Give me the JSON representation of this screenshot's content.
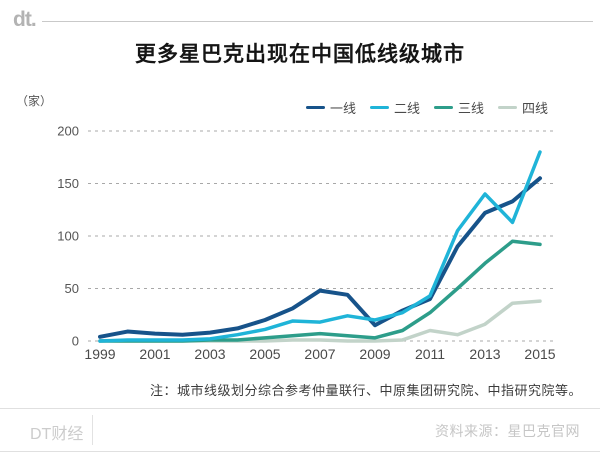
{
  "header": {
    "logo_text": "dt.",
    "title": "更多星巴克出现在中国低线级城市"
  },
  "y_axis_unit": "（家）",
  "chart_data": {
    "type": "line",
    "title": "更多星巴克出现在中国低线级城市",
    "ylabel": "（家）",
    "ylim": [
      0,
      200
    ],
    "y_ticks": [
      0,
      50,
      100,
      150,
      200
    ],
    "x_tick_labels": [
      "1999",
      "2001",
      "2003",
      "2005",
      "2007",
      "2009",
      "2011",
      "2013",
      "2015"
    ],
    "x": [
      1999,
      2000,
      2001,
      2002,
      2003,
      2004,
      2005,
      2006,
      2007,
      2008,
      2009,
      2010,
      2011,
      2012,
      2013,
      2014,
      2015
    ],
    "grid": "dashed-horizontal",
    "legend_position": "top-right",
    "draw_order": [
      3,
      2,
      0,
      1
    ],
    "series": [
      {
        "name": "一线",
        "color": "#17538a",
        "values": [
          4,
          9,
          7,
          6,
          8,
          12,
          20,
          31,
          48,
          44,
          15,
          29,
          40,
          90,
          122,
          133,
          155
        ]
      },
      {
        "name": "二线",
        "color": "#1fb4d8",
        "values": [
          0,
          1,
          1,
          1,
          2,
          6,
          11,
          19,
          18,
          24,
          20,
          27,
          43,
          105,
          140,
          113,
          180
        ]
      },
      {
        "name": "三线",
        "color": "#2d9d8a",
        "values": [
          0,
          0,
          0,
          0,
          1,
          1,
          3,
          5,
          7,
          5,
          3,
          10,
          27,
          50,
          74,
          95,
          92
        ]
      },
      {
        "name": "四线",
        "color": "#c2d3c9",
        "values": [
          0,
          0,
          0,
          0,
          0,
          0,
          0,
          1,
          1,
          0,
          0,
          1,
          10,
          6,
          16,
          36,
          38
        ]
      }
    ]
  },
  "note": "注：城市线级划分综合参考仲量联行、中原集团研究院、中指研究院等。",
  "footer": {
    "brand": "DT财经",
    "source": "资料来源：星巴克官网"
  }
}
